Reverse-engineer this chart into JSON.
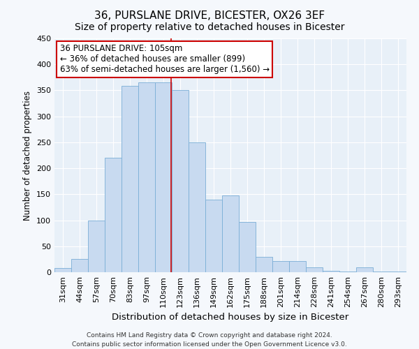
{
  "title": "36, PURSLANE DRIVE, BICESTER, OX26 3EF",
  "subtitle": "Size of property relative to detached houses in Bicester",
  "xlabel": "Distribution of detached houses by size in Bicester",
  "ylabel": "Number of detached properties",
  "bar_labels": [
    "31sqm",
    "44sqm",
    "57sqm",
    "70sqm",
    "83sqm",
    "97sqm",
    "110sqm",
    "123sqm",
    "136sqm",
    "149sqm",
    "162sqm",
    "175sqm",
    "188sqm",
    "201sqm",
    "214sqm",
    "228sqm",
    "241sqm",
    "254sqm",
    "267sqm",
    "280sqm",
    "293sqm"
  ],
  "bar_values": [
    8,
    25,
    99,
    220,
    358,
    365,
    365,
    350,
    250,
    140,
    148,
    97,
    30,
    22,
    22,
    10,
    3,
    2,
    10,
    2,
    2
  ],
  "bar_color": "#c8daf0",
  "bar_edge_color": "#7aaed6",
  "vline_color": "#cc0000",
  "vline_pos": 6.46,
  "ylim": [
    0,
    450
  ],
  "yticks": [
    0,
    50,
    100,
    150,
    200,
    250,
    300,
    350,
    400,
    450
  ],
  "annotation_title": "36 PURSLANE DRIVE: 105sqm",
  "annotation_line1": "← 36% of detached houses are smaller (899)",
  "annotation_line2": "63% of semi-detached houses are larger (1,560) →",
  "annotation_box_facecolor": "#ffffff",
  "annotation_box_edgecolor": "#cc0000",
  "footer_line1": "Contains HM Land Registry data © Crown copyright and database right 2024.",
  "footer_line2": "Contains public sector information licensed under the Open Government Licence v3.0.",
  "fig_facecolor": "#f5f8fc",
  "ax_facecolor": "#e8f0f8",
  "grid_color": "#ffffff",
  "title_fontsize": 11,
  "subtitle_fontsize": 10,
  "tick_fontsize": 8,
  "ylabel_fontsize": 8.5,
  "xlabel_fontsize": 9.5,
  "annotation_fontsize": 8.5,
  "footer_fontsize": 6.5
}
